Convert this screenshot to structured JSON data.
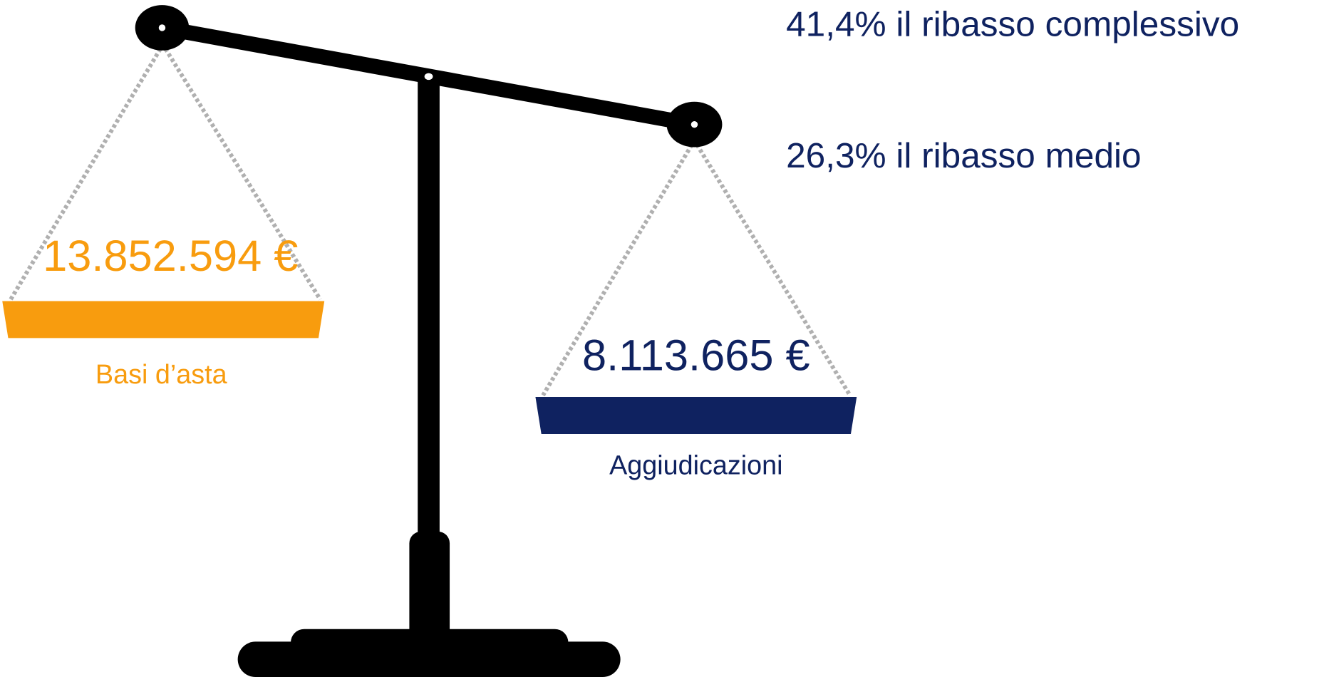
{
  "left": {
    "amount": "13.852.594 €",
    "label": "Basi d’asta"
  },
  "right": {
    "amount": "8.113.665 €",
    "label": "Aggiudicazioni"
  },
  "notes": [
    "41,4% il ribasso complessivo",
    "26,3% il ribasso medio"
  ]
}
